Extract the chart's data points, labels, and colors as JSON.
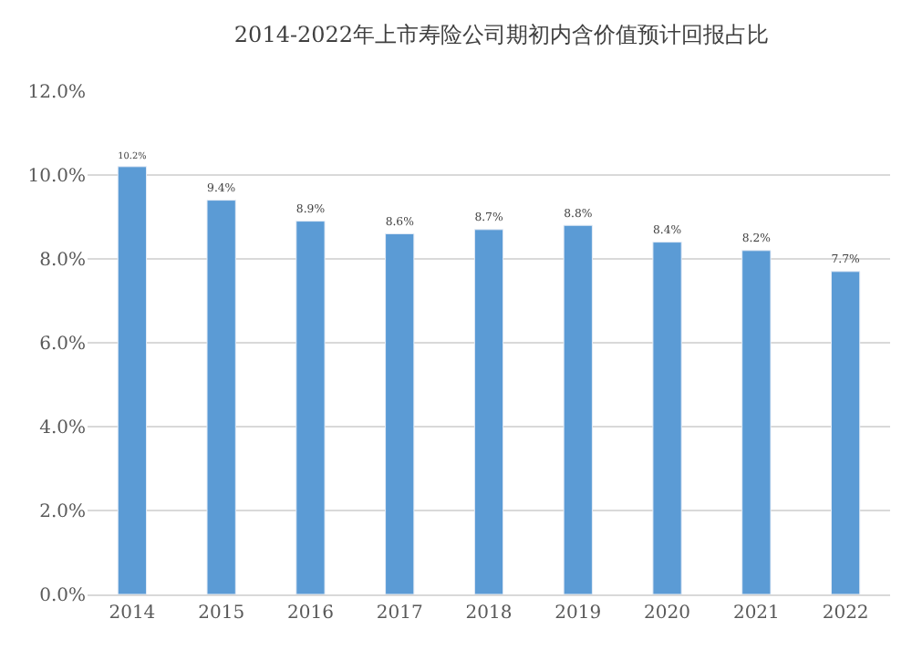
{
  "chart_data": {
    "type": "bar",
    "title": "2014-2022年上市寿险公司期初内含价值预计回报占比",
    "categories": [
      "2014",
      "2015",
      "2016",
      "2017",
      "2018",
      "2019",
      "2020",
      "2021",
      "2022"
    ],
    "values": [
      10.2,
      9.4,
      8.9,
      8.6,
      8.7,
      8.8,
      8.4,
      8.2,
      7.7
    ],
    "value_labels": [
      "10.2%",
      "9.4%",
      "8.9%",
      "8.6%",
      "8.7%",
      "8.8%",
      "8.4%",
      "8.2%",
      "7.7%"
    ],
    "color": "#5b9bd5",
    "ylim": [
      0,
      12
    ],
    "yticks": [
      {
        "value": 0,
        "label": "0.0%"
      },
      {
        "value": 2,
        "label": "2.0%"
      },
      {
        "value": 4,
        "label": "4.0%"
      },
      {
        "value": 6,
        "label": "6.0%"
      },
      {
        "value": 8,
        "label": "8.0%"
      },
      {
        "value": 10,
        "label": "10.0%"
      },
      {
        "value": 12,
        "label": "12.0%"
      }
    ],
    "grid": "y",
    "legend": false
  }
}
